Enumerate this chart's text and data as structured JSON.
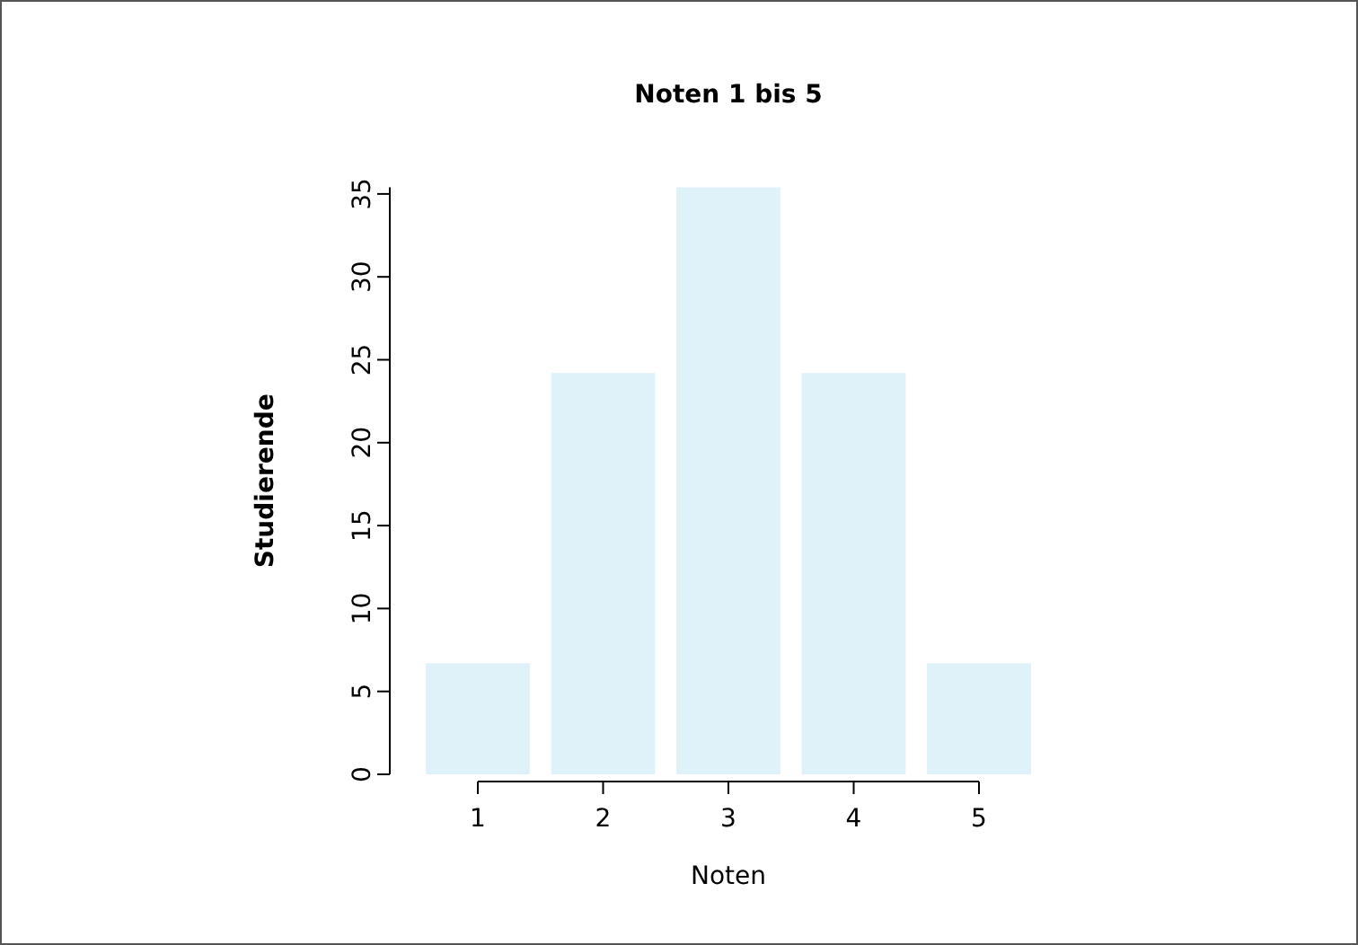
{
  "chart_data": {
    "type": "bar",
    "title": "Noten 1 bis 5",
    "xlabel": "Noten",
    "ylabel": "Studierende",
    "categories": [
      "1",
      "2",
      "3",
      "4",
      "5"
    ],
    "values": [
      6.7,
      24.2,
      35.4,
      24.2,
      6.7
    ],
    "color": "#dff1f9",
    "ylim": [
      0,
      35.4
    ],
    "yticks": [
      0,
      5,
      10,
      15,
      20,
      25,
      30,
      35
    ]
  }
}
